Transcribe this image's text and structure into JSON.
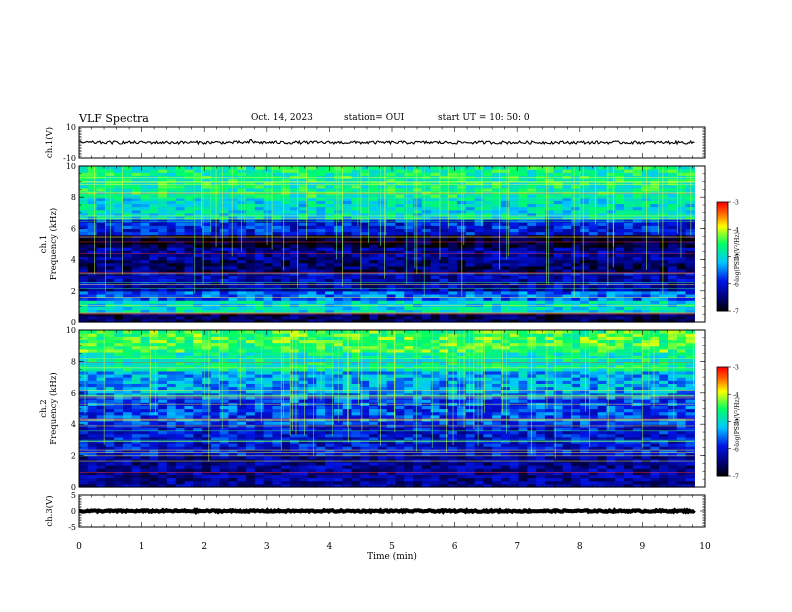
{
  "header": {
    "title": "VLF Spectra",
    "date": "Oct. 14, 2023",
    "station": "station= OUI",
    "start": "start  UT  =   10: 50: 0"
  },
  "colors": {
    "spectrum_low": "#000000",
    "spectrum_mid_low": "#0000d0",
    "spectrum_mid": "#00c8ff",
    "spectrum_green": "#00ff60",
    "spectrum_high": "#ffff00",
    "spectrum_max": "#ff0000"
  },
  "chart_data": [
    {
      "type": "line",
      "ylabel": "ch.1(V)",
      "ylim": [
        -10,
        10
      ],
      "yticks": [
        "10",
        "-10"
      ],
      "x_range_min": [
        0,
        9.83
      ],
      "level": 0,
      "amplitude": 1.0,
      "burst": {
        "x": 2.75,
        "amplitude": 4.5
      }
    },
    {
      "type": "heatmap",
      "ylabel": "ch.1\nFrequency (kHz)",
      "ylim": [
        0,
        10
      ],
      "yticks": [
        "0",
        "2",
        "4",
        "6",
        "8",
        "10"
      ],
      "x_range_min": [
        0,
        9.83
      ],
      "colorbar": {
        "label": "log(PSD)(V²/Hz)",
        "range": [
          -7,
          -3
        ],
        "ticks": [
          "-3",
          "-4",
          "-5",
          "-6",
          "-7"
        ]
      },
      "bands": [
        {
          "f0": 0,
          "f1": 0.6,
          "level": -6.6
        },
        {
          "f0": 0.6,
          "f1": 1.4,
          "level": -5.0
        },
        {
          "f0": 1.4,
          "f1": 2.1,
          "level": -5.6
        },
        {
          "f0": 2.1,
          "f1": 3.3,
          "level": -6.2
        },
        {
          "f0": 3.3,
          "f1": 4.0,
          "level": -6.5
        },
        {
          "f0": 4.0,
          "f1": 4.8,
          "level": -6.3
        },
        {
          "f0": 4.8,
          "f1": 5.6,
          "level": -6.8
        },
        {
          "f0": 5.6,
          "f1": 6.6,
          "level": -5.9
        },
        {
          "f0": 6.6,
          "f1": 8.0,
          "level": -5.0
        },
        {
          "f0": 8.0,
          "f1": 10,
          "level": -4.7
        }
      ]
    },
    {
      "type": "heatmap",
      "ylabel": "ch.2\nFrequency (kHz)",
      "ylim": [
        0,
        10
      ],
      "yticks": [
        "0",
        "2",
        "4",
        "6",
        "8",
        "10"
      ],
      "x_range_min": [
        0,
        9.83
      ],
      "colorbar": {
        "label": "log(PSD)(V²/Hz)",
        "range": [
          -7,
          -3
        ],
        "ticks": [
          "-3",
          "-4",
          "-5",
          "-6",
          "-7"
        ]
      },
      "bands": [
        {
          "f0": 0,
          "f1": 2.0,
          "level": -6.3
        },
        {
          "f0": 2.0,
          "f1": 4.0,
          "level": -6.0
        },
        {
          "f0": 4.0,
          "f1": 6.0,
          "level": -5.7
        },
        {
          "f0": 6.0,
          "f1": 7.5,
          "level": -5.3
        },
        {
          "f0": 7.5,
          "f1": 8.7,
          "level": -4.8
        },
        {
          "f0": 8.7,
          "f1": 10,
          "level": -4.4
        }
      ]
    },
    {
      "type": "line",
      "ylabel": "ch.3(V)",
      "ylim": [
        -5,
        5
      ],
      "yticks": [
        "5",
        "0",
        "-5"
      ],
      "x_range_min": [
        0,
        9.83
      ],
      "level": 0,
      "amplitude": 0.25
    }
  ],
  "xaxis": {
    "label": "Time  (min)",
    "range": [
      0,
      10
    ],
    "ticks": [
      "0",
      "1",
      "2",
      "3",
      "4",
      "5",
      "6",
      "7",
      "8",
      "9",
      "10"
    ]
  }
}
